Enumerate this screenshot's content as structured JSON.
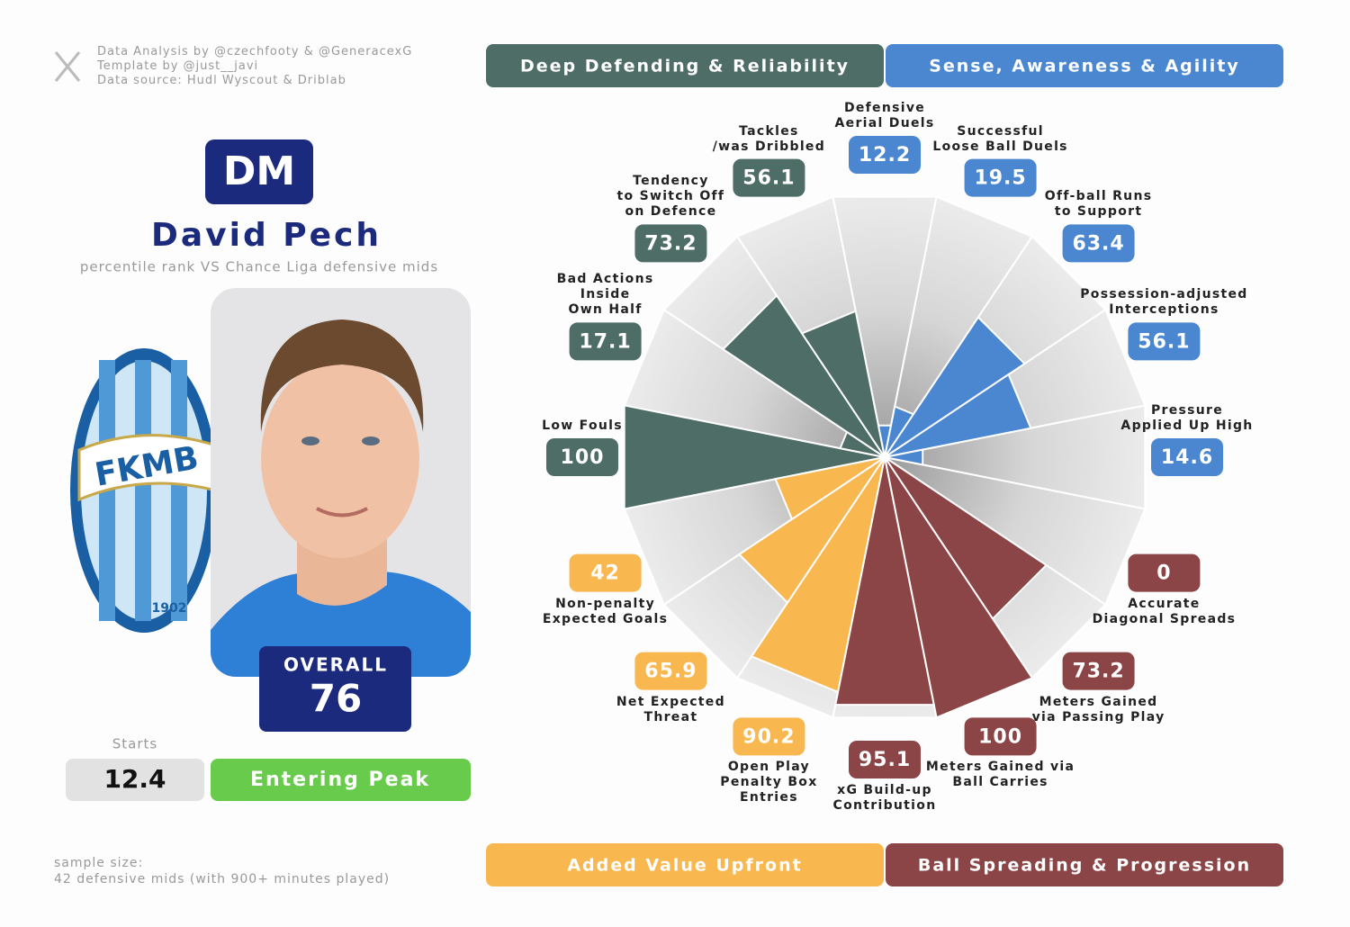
{
  "credits": [
    "Data Analysis by @czechfooty & @GeneracexG",
    "Template by @just__javi",
    "Data source: Hudl Wyscout & Driblab"
  ],
  "profile": {
    "position": "DM",
    "name": "David Pech",
    "subtitle": "percentile rank VS Chance Liga defensive mids",
    "crest_text": "FKMB",
    "crest_year": "1902",
    "overall_label": "OVERALL",
    "overall": "76",
    "starts_label": "Starts",
    "starts": "12.4",
    "status": "Entering Peak"
  },
  "sample": [
    "sample size:",
    "42 defensive mids (with 900+ minutes played)"
  ],
  "chart_data": {
    "type": "pizza",
    "categories": [
      "Defensive\nAerial Duels",
      "Successful\nLoose Ball Duels",
      "Off-ball Runs\nto Support",
      "Possession-adjusted\nInterceptions",
      "Pressure\nApplied Up High",
      "Accurate\nDiagonal Spreads",
      "Meters Gained\nvia Passing Play",
      "Meters Gained via\nBall Carries",
      "xG Build-up\nContribution",
      "Open Play\nPenalty Box\nEntries",
      "Net Expected\nThreat",
      "Non-penalty\nExpected Goals",
      "Low Fouls",
      "Bad Actions\nInside\nOwn Half",
      "Tendency\nto Switch Off\non Defence",
      "Tackles\n/was Dribbled"
    ],
    "ylim": [
      0,
      100
    ],
    "series": [
      {
        "name": "Deep Defending & Reliability",
        "color": "#4f6d67",
        "values": [
          null,
          null,
          null,
          null,
          null,
          null,
          null,
          null,
          null,
          null,
          null,
          null,
          100,
          17.1,
          73.2,
          56.1
        ]
      },
      {
        "name": "Sense, Awareness & Agility",
        "color": "#4a87d0",
        "values": [
          12.2,
          19.5,
          63.4,
          56.1,
          14.6,
          null,
          null,
          null,
          null,
          null,
          null,
          null,
          null,
          null,
          null,
          null
        ]
      },
      {
        "name": "Added Value Upfront",
        "color": "#f9b74f",
        "values": [
          null,
          null,
          null,
          null,
          null,
          null,
          null,
          null,
          null,
          90.2,
          65.9,
          42,
          null,
          null,
          null,
          null
        ]
      },
      {
        "name": "Ball Spreading & Progression",
        "color": "#8c4546",
        "values": [
          null,
          null,
          null,
          null,
          null,
          0,
          73.2,
          100,
          95.1,
          null,
          null,
          null,
          null,
          null,
          null,
          null
        ]
      }
    ]
  }
}
